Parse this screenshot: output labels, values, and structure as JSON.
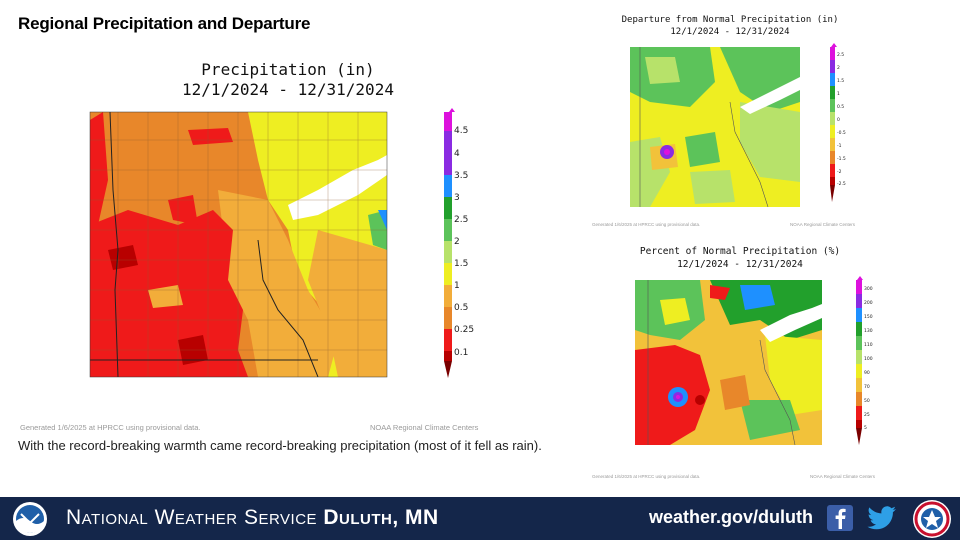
{
  "slide": {
    "title": "Regional Precipitation and Departure",
    "caption": "With the record-breaking warmth came record-breaking precipitation (most of it fell as rain)."
  },
  "main_map": {
    "title_line1": "Precipitation (in)",
    "title_line2": "12/1/2024 - 12/31/2024",
    "footnote_left": "Generated 1/6/2025 at HPRCC using provisional data.",
    "footnote_right": "NOAA Regional Climate Centers",
    "legend": [
      "4.5",
      "4",
      "3.5",
      "3",
      "2.5",
      "2",
      "1.5",
      "1",
      "0.5",
      "0.25",
      "0.1"
    ],
    "legend_colors": [
      "#dd11dd",
      "#8a2be2",
      "#1e90ff",
      "#22a02c",
      "#5cc35a",
      "#b7e26a",
      "#eeee22",
      "#f2ad3a",
      "#e8872a",
      "#ef1a1a",
      "#b80000",
      "#7a0000"
    ]
  },
  "departure_map": {
    "title_line1": "Departure from Normal Precipitation (in)",
    "title_line2": "12/1/2024 - 12/31/2024",
    "footnote_left": "Generated 1/6/2025 at HPRCC using provisional data.",
    "footnote_right": "NOAA Regional Climate Centers",
    "legend": [
      "2.5",
      "2",
      "1.5",
      "1",
      "0.5",
      "0",
      "-0.5",
      "-1",
      "-1.5",
      "-2",
      "-2.5"
    ],
    "legend_colors": [
      "#dd11dd",
      "#8a2be2",
      "#1e90ff",
      "#22a02c",
      "#5cc35a",
      "#b7e26a",
      "#eeee22",
      "#f2c23a",
      "#e8872a",
      "#ef1a1a",
      "#b80000"
    ]
  },
  "percent_map": {
    "title_line1": "Percent of Normal Precipitation (%)",
    "title_line2": "12/1/2024 - 12/31/2024",
    "footnote_left": "Generated 1/6/2025 at HPRCC using provisional data.",
    "footnote_right": "NOAA Regional Climate Centers",
    "legend": [
      "300",
      "200",
      "150",
      "130",
      "110",
      "100",
      "90",
      "70",
      "50",
      "25",
      "5"
    ],
    "legend_colors": [
      "#dd11dd",
      "#8a2be2",
      "#1e90ff",
      "#22a02c",
      "#5cc35a",
      "#b7e26a",
      "#eeee22",
      "#f2c23a",
      "#e8872a",
      "#ef1a1a",
      "#b80000"
    ]
  },
  "footer": {
    "agency": "National Weather Service",
    "office": "Duluth, MN",
    "url": "weather.gov/duluth",
    "bg_color": "#14264a"
  }
}
